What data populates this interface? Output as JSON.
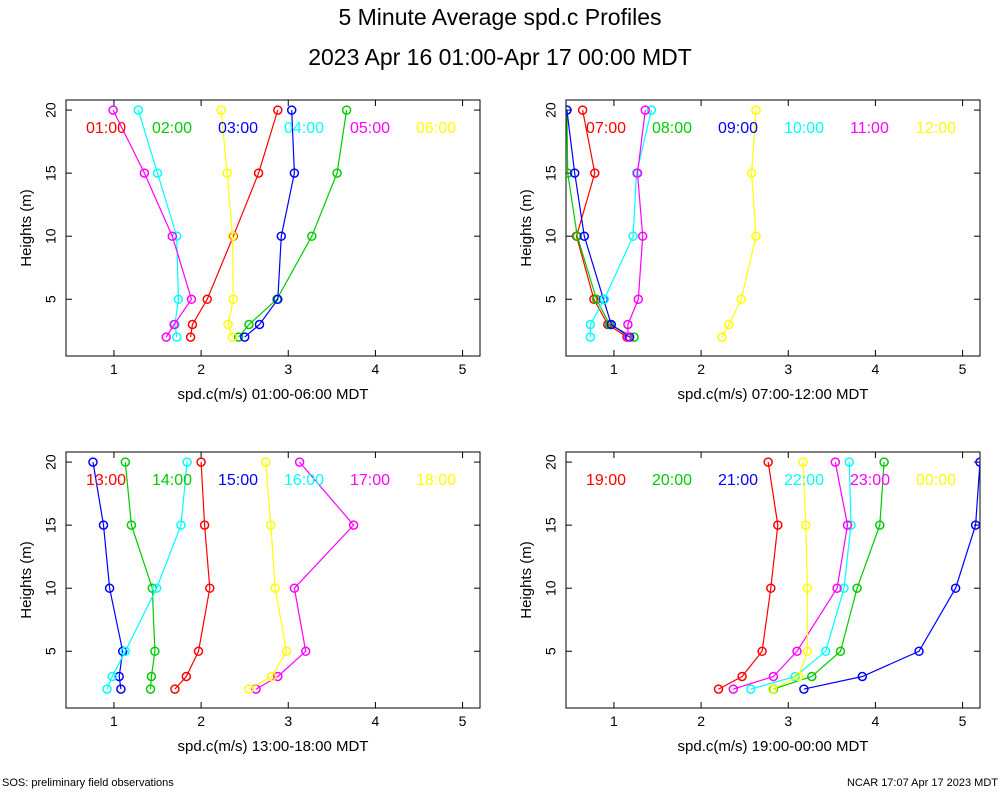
{
  "title": "5 Minute Average spd.c Profiles",
  "subtitle": "2023 Apr 16 01:00-Apr 17 00:00 MDT",
  "footer_left": "SOS: preliminary field observations",
  "footer_right": "NCAR 17:07 Apr 17 2023 MDT",
  "colors": [
    "#ff0000",
    "#00cc00",
    "#0000ff",
    "#00ffff",
    "#ff00ff",
    "#ffff00"
  ],
  "chart_data": [
    {
      "type": "line",
      "xlabel": "spd.c(m/s) 01:00-06:00 MDT",
      "ylabel": "Heights (m)",
      "xlim": [
        0.45,
        5.2
      ],
      "ylim": [
        0.5,
        20.8
      ],
      "xticks": [
        1,
        2,
        3,
        4,
        5
      ],
      "yticks": [
        5,
        10,
        15,
        20
      ],
      "heights": [
        2,
        3,
        5,
        10,
        15,
        20
      ],
      "series": [
        {
          "name": "01:00",
          "values": [
            1.88,
            1.9,
            2.07,
            2.37,
            2.66,
            2.88
          ]
        },
        {
          "name": "02:00",
          "values": [
            2.43,
            2.55,
            2.87,
            3.27,
            3.56,
            3.67
          ]
        },
        {
          "name": "03:00",
          "values": [
            2.5,
            2.67,
            2.88,
            2.92,
            3.07,
            3.04
          ]
        },
        {
          "name": "04:00",
          "values": [
            1.72,
            1.7,
            1.74,
            1.72,
            1.5,
            1.28
          ]
        },
        {
          "name": "05:00",
          "values": [
            1.6,
            1.69,
            1.89,
            1.67,
            1.35,
            0.99
          ]
        },
        {
          "name": "06:00",
          "values": [
            2.36,
            2.31,
            2.37,
            2.36,
            2.3,
            2.23
          ]
        }
      ]
    },
    {
      "type": "line",
      "xlabel": "spd.c(m/s) 07:00-12:00 MDT",
      "ylabel": "Heights (m)",
      "xlim": [
        0.45,
        5.2
      ],
      "ylim": [
        0.5,
        20.8
      ],
      "xticks": [
        1,
        2,
        3,
        4,
        5
      ],
      "yticks": [
        5,
        10,
        15,
        20
      ],
      "heights": [
        2,
        3,
        5,
        10,
        15,
        20
      ],
      "series": [
        {
          "name": "07:00",
          "values": [
            1.15,
            0.93,
            0.77,
            0.57,
            0.78,
            0.64
          ]
        },
        {
          "name": "08:00",
          "values": [
            1.23,
            0.95,
            0.8,
            0.58,
            0.47,
            0.46
          ]
        },
        {
          "name": "09:00",
          "values": [
            1.18,
            0.97,
            0.88,
            0.66,
            0.55,
            0.46
          ]
        },
        {
          "name": "10:00",
          "values": [
            0.73,
            0.73,
            0.89,
            1.22,
            1.26,
            1.43
          ]
        },
        {
          "name": "11:00",
          "values": [
            1.16,
            1.16,
            1.28,
            1.33,
            1.27,
            1.36
          ]
        },
        {
          "name": "12:00",
          "values": [
            2.24,
            2.32,
            2.46,
            2.63,
            2.58,
            2.63
          ]
        }
      ]
    },
    {
      "type": "line",
      "xlabel": "spd.c(m/s) 13:00-18:00 MDT",
      "ylabel": "Heights (m)",
      "xlim": [
        0.45,
        5.2
      ],
      "ylim": [
        0.5,
        20.8
      ],
      "xticks": [
        1,
        2,
        3,
        4,
        5
      ],
      "yticks": [
        5,
        10,
        15,
        20
      ],
      "heights": [
        2,
        3,
        5,
        10,
        15,
        20
      ],
      "series": [
        {
          "name": "13:00",
          "values": [
            1.7,
            1.83,
            1.97,
            2.1,
            2.04,
            2.0
          ]
        },
        {
          "name": "14:00",
          "values": [
            1.42,
            1.43,
            1.47,
            1.44,
            1.2,
            1.13
          ]
        },
        {
          "name": "15:00",
          "values": [
            1.08,
            1.06,
            1.1,
            0.95,
            0.88,
            0.76
          ]
        },
        {
          "name": "16:00",
          "values": [
            0.92,
            0.98,
            1.13,
            1.49,
            1.77,
            1.84
          ]
        },
        {
          "name": "17:00",
          "values": [
            2.63,
            2.88,
            3.2,
            3.07,
            3.75,
            3.13
          ]
        },
        {
          "name": "18:00",
          "values": [
            2.55,
            2.81,
            2.98,
            2.85,
            2.8,
            2.74
          ]
        }
      ]
    },
    {
      "type": "line",
      "xlabel": "spd.c(m/s) 19:00-00:00 MDT",
      "ylabel": "Heights (m)",
      "xlim": [
        0.45,
        5.2
      ],
      "ylim": [
        0.5,
        20.8
      ],
      "xticks": [
        1,
        2,
        3,
        4,
        5
      ],
      "yticks": [
        5,
        10,
        15,
        20
      ],
      "heights": [
        2,
        3,
        5,
        10,
        15,
        20
      ],
      "series": [
        {
          "name": "19:00",
          "values": [
            2.2,
            2.47,
            2.7,
            2.8,
            2.88,
            2.77
          ]
        },
        {
          "name": "20:00",
          "values": [
            2.83,
            3.27,
            3.6,
            3.79,
            4.05,
            4.1
          ]
        },
        {
          "name": "21:00",
          "values": [
            3.18,
            3.85,
            4.5,
            4.92,
            5.15,
            5.2
          ]
        },
        {
          "name": "22:00",
          "values": [
            2.57,
            3.08,
            3.43,
            3.64,
            3.72,
            3.7
          ]
        },
        {
          "name": "23:00",
          "values": [
            2.37,
            2.83,
            3.1,
            3.56,
            3.68,
            3.54
          ]
        },
        {
          "name": "00:00",
          "values": [
            2.82,
            3.12,
            3.22,
            3.22,
            3.2,
            3.17
          ]
        }
      ]
    }
  ]
}
